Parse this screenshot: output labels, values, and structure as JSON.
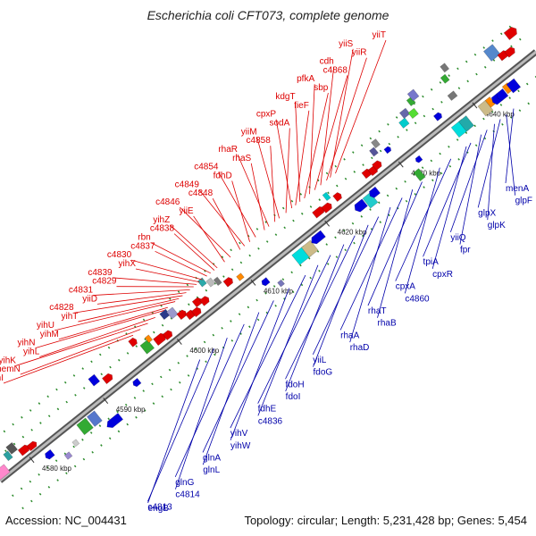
{
  "title": "Escherichia coli CFT073, complete genome",
  "footer": {
    "accession": "Accession: NC_004431",
    "summary": "Topology: circular; Length: 5,231,428 bp; Genes: 5,454"
  },
  "colors": {
    "top_label": "#dd0000",
    "bottom_label": "#0000aa",
    "axis": "#888888",
    "dots": "#2a8a2a"
  },
  "ruler": [
    {
      "pos": 4580,
      "label": "4580 kbp"
    },
    {
      "pos": 4590,
      "label": "4590 kbp"
    },
    {
      "pos": 4600,
      "label": "4600 kbp"
    },
    {
      "pos": 4610,
      "label": "4610 kbp"
    },
    {
      "pos": 4620,
      "label": "4620 kbp"
    },
    {
      "pos": 4630,
      "label": "4630 kbp"
    },
    {
      "pos": 4640,
      "label": "4640 kbp"
    }
  ],
  "top_labels": [
    {
      "text": "yiiT",
      "pos": 4624.0
    },
    {
      "text": "yiiS",
      "pos": 4623.3
    },
    {
      "text": "yiiR",
      "pos": 4622.8
    },
    {
      "text": "cdh",
      "pos": 4622.0
    },
    {
      "text": "c4868",
      "pos": 4621.2
    },
    {
      "text": "pfkA",
      "pos": 4620.5
    },
    {
      "text": "sbp",
      "pos": 4619.8
    },
    {
      "text": "kdgT",
      "pos": 4619.2
    },
    {
      "text": "fieF",
      "pos": 4618.6
    },
    {
      "text": "cpxP",
      "pos": 4618.1
    },
    {
      "text": "sodA",
      "pos": 4617.3
    },
    {
      "text": "yiiM",
      "pos": 4616.4
    },
    {
      "text": "c4858",
      "pos": 4615.8
    },
    {
      "text": "rhaR",
      "pos": 4615.0
    },
    {
      "text": "rhaS",
      "pos": 4614.4
    },
    {
      "text": "c4854",
      "pos": 4613.2
    },
    {
      "text": "fdhD",
      "pos": 4612.4
    },
    {
      "text": "c4849",
      "pos": 4611.7
    },
    {
      "text": "c4848",
      "pos": 4611.1
    },
    {
      "text": "c4846",
      "pos": 4609.8
    },
    {
      "text": "yiiE",
      "pos": 4609.0
    },
    {
      "text": "yihZ",
      "pos": 4608.0
    },
    {
      "text": "c4838",
      "pos": 4607.6
    },
    {
      "text": "rbn",
      "pos": 4607.1
    },
    {
      "text": "c4837",
      "pos": 4606.6
    },
    {
      "text": "c4830",
      "pos": 4606.0
    },
    {
      "text": "yihX",
      "pos": 4605.6
    },
    {
      "text": "c4839",
      "pos": 4605.2
    },
    {
      "text": "c4829",
      "pos": 4604.8
    },
    {
      "text": "c4831",
      "pos": 4604.3
    },
    {
      "text": "yiiD",
      "pos": 4603.8
    },
    {
      "text": "c4828",
      "pos": 4603.3
    },
    {
      "text": "yihT",
      "pos": 4602.8
    },
    {
      "text": "yihU",
      "pos": 4602.3
    },
    {
      "text": "yihM",
      "pos": 4601.3
    },
    {
      "text": "yihN",
      "pos": 4600.8
    },
    {
      "text": "yihL",
      "pos": 4599.6
    },
    {
      "text": "yihK",
      "pos": 4598.6
    },
    {
      "text": "hemN",
      "pos": 4597.6
    },
    {
      "text": "yihI",
      "pos": 4596.6
    }
  ],
  "bottom_labels": [
    {
      "text": "menA",
      "pos": 4643.0
    },
    {
      "text": "glpF",
      "pos": 4642.0
    },
    {
      "text": "glpX",
      "pos": 4641.2
    },
    {
      "text": "glpK",
      "pos": 4640.4
    },
    {
      "text": "yiiQ",
      "pos": 4639.4
    },
    {
      "text": "fpr",
      "pos": 4638.6
    },
    {
      "text": "tpiA",
      "pos": 4637.2
    },
    {
      "text": "cpxR",
      "pos": 4636.6
    },
    {
      "text": "cpxA",
      "pos": 4634.5
    },
    {
      "text": "c4860",
      "pos": 4633.0
    },
    {
      "text": "rhaT",
      "pos": 4630.6
    },
    {
      "text": "rhaB",
      "pos": 4629.3
    },
    {
      "text": "rhaA",
      "pos": 4627.9
    },
    {
      "text": "rhaD",
      "pos": 4626.3
    },
    {
      "text": "yiiL",
      "pos": 4624.7
    },
    {
      "text": "fdoG",
      "pos": 4623.3
    },
    {
      "text": "fdoH",
      "pos": 4621.5
    },
    {
      "text": "fdoI",
      "pos": 4620.0
    },
    {
      "text": "fdhE",
      "pos": 4618.2
    },
    {
      "text": "c4836",
      "pos": 4616.5
    },
    {
      "text": "yihV",
      "pos": 4614.8
    },
    {
      "text": "yihW",
      "pos": 4612.6
    },
    {
      "text": "glnA",
      "pos": 4610.5
    },
    {
      "text": "glnL",
      "pos": 4608.5
    },
    {
      "text": "glnG",
      "pos": 4606.5
    },
    {
      "text": "c4814",
      "pos": 4604.2
    },
    {
      "text": "c4813",
      "pos": 4602.4
    },
    {
      "text": "engB",
      "pos": 4600.5
    }
  ],
  "features": [
    {
      "pos": 4576.0,
      "len": 1.4,
      "off": 6,
      "w": 11,
      "shape": "box",
      "color": "#ff88cc"
    },
    {
      "pos": 4578.0,
      "len": 0.6,
      "off": 16,
      "w": 9,
      "shape": "box",
      "color": "#2aa0a0"
    },
    {
      "pos": 4578.7,
      "len": 0.8,
      "off": 20,
      "w": 10,
      "shape": "box",
      "color": "#555555"
    },
    {
      "pos": 4579.5,
      "len": 0.9,
      "off": 10,
      "w": 8,
      "shape": "arrow",
      "color": "#e00000"
    },
    {
      "pos": 4580.5,
      "len": 0.8,
      "off": 8,
      "w": 7,
      "shape": "arrow",
      "color": "#e00000"
    },
    {
      "pos": 4581.5,
      "len": 0.7,
      "off": -12,
      "w": 8,
      "shape": "arrow",
      "color": "#0000dd"
    },
    {
      "pos": 4583.0,
      "len": 0.6,
      "off": -26,
      "w": 6,
      "shape": "box",
      "color": "#9a8ad0"
    },
    {
      "pos": 4584.5,
      "len": 0.5,
      "off": -20,
      "w": 6,
      "shape": "box",
      "color": "#cccccc"
    },
    {
      "pos": 4586.0,
      "len": 1.2,
      "off": -12,
      "w": 14,
      "shape": "box",
      "color": "#33aa33"
    },
    {
      "pos": 4587.4,
      "len": 1.0,
      "off": -12,
      "w": 14,
      "shape": "box",
      "color": "#5577cc"
    },
    {
      "pos": 4588.8,
      "len": 1.4,
      "off": -28,
      "w": 9,
      "shape": "arrow",
      "color": "#0000dd"
    },
    {
      "pos": 4590.0,
      "len": 0.8,
      "off": 22,
      "w": 10,
      "shape": "box",
      "color": "#0000dd"
    },
    {
      "pos": 4591.2,
      "len": 0.8,
      "off": 14,
      "w": 8,
      "shape": "arrow",
      "color": "#e00000"
    },
    {
      "pos": 4593.5,
      "len": 0.6,
      "off": -10,
      "w": 7,
      "shape": "arrow",
      "color": "#0000dd"
    },
    {
      "pos": 4595.8,
      "len": 0.6,
      "off": 28,
      "w": 8,
      "shape": "arrow",
      "color": "#e00000"
    },
    {
      "pos": 4596.5,
      "len": 1.0,
      "off": 14,
      "w": 12,
      "shape": "box",
      "color": "#33aa33"
    },
    {
      "pos": 4597.4,
      "len": 0.5,
      "off": 20,
      "w": 7,
      "shape": "box",
      "color": "#ff8800"
    },
    {
      "pos": 4598.0,
      "len": 1.0,
      "off": 12,
      "w": 9,
      "shape": "arrow",
      "color": "#e00000"
    },
    {
      "pos": 4599.1,
      "len": 0.7,
      "off": 10,
      "w": 8,
      "shape": "arrow",
      "color": "#e00000"
    },
    {
      "pos": 4600.2,
      "len": 0.8,
      "off": 30,
      "w": 8,
      "shape": "box",
      "color": "#2a3a8a"
    },
    {
      "pos": 4600.9,
      "len": 0.8,
      "off": 26,
      "w": 10,
      "shape": "box",
      "color": "#9999cc"
    },
    {
      "pos": 4601.6,
      "len": 0.7,
      "off": 18,
      "w": 8,
      "shape": "arrow",
      "color": "#e00000"
    },
    {
      "pos": 4602.3,
      "len": 0.7,
      "off": 12,
      "w": 8,
      "shape": "arrow",
      "color": "#e00000"
    },
    {
      "pos": 4603.0,
      "len": 0.7,
      "off": 10,
      "w": 8,
      "shape": "arrow",
      "color": "#e00000"
    },
    {
      "pos": 4603.7,
      "len": 0.7,
      "off": 18,
      "w": 8,
      "shape": "arrow",
      "color": "#e00000"
    },
    {
      "pos": 4604.4,
      "len": 0.7,
      "off": 14,
      "w": 8,
      "shape": "arrow",
      "color": "#e00000"
    },
    {
      "pos": 4605.5,
      "len": 0.6,
      "off": 32,
      "w": 8,
      "shape": "box",
      "color": "#2aaaaa"
    },
    {
      "pos": 4606.2,
      "len": 0.6,
      "off": 26,
      "w": 8,
      "shape": "box",
      "color": "#bbbbbb"
    },
    {
      "pos": 4606.9,
      "len": 0.5,
      "off": 22,
      "w": 8,
      "shape": "box",
      "color": "#777777"
    },
    {
      "pos": 4607.6,
      "len": 0.7,
      "off": 14,
      "w": 8,
      "shape": "arrow",
      "color": "#e00000"
    },
    {
      "pos": 4609.0,
      "len": 0.6,
      "off": 10,
      "w": 6,
      "shape": "box",
      "color": "#ff8800"
    },
    {
      "pos": 4610.8,
      "len": 0.6,
      "off": -12,
      "w": 7,
      "shape": "arrow",
      "color": "#0000dd"
    },
    {
      "pos": 4612.0,
      "len": 0.5,
      "off": -24,
      "w": 6,
      "shape": "box",
      "color": "#7777bb"
    },
    {
      "pos": 4615.0,
      "len": 1.6,
      "off": -14,
      "w": 14,
      "shape": "box",
      "color": "#00dddd"
    },
    {
      "pos": 4616.3,
      "len": 1.2,
      "off": -14,
      "w": 14,
      "shape": "box",
      "color": "#ccbb88"
    },
    {
      "pos": 4617.8,
      "len": 1.2,
      "off": -10,
      "w": 9,
      "shape": "arrow",
      "color": "#0000dd"
    },
    {
      "pos": 4619.5,
      "len": 1.0,
      "off": 12,
      "w": 8,
      "shape": "arrow",
      "color": "#e00000"
    },
    {
      "pos": 4620.6,
      "len": 0.8,
      "off": 10,
      "w": 8,
      "shape": "arrow",
      "color": "#e00000"
    },
    {
      "pos": 4621.5,
      "len": 0.5,
      "off": 20,
      "w": 8,
      "shape": "box",
      "color": "#00cccc"
    },
    {
      "pos": 4622.3,
      "len": 0.6,
      "off": 12,
      "w": 8,
      "shape": "arrow",
      "color": "#e00000"
    },
    {
      "pos": 4623.5,
      "len": 1.0,
      "off": -12,
      "w": 10,
      "shape": "arrow",
      "color": "#0000dd"
    },
    {
      "pos": 4624.6,
      "len": 1.0,
      "off": -14,
      "w": 14,
      "shape": "box",
      "color": "#22cccc"
    },
    {
      "pos": 4625.6,
      "len": 0.8,
      "off": -10,
      "w": 9,
      "shape": "arrow",
      "color": "#0000dd"
    },
    {
      "pos": 4626.2,
      "len": 0.7,
      "off": 12,
      "w": 8,
      "shape": "arrow",
      "color": "#e00000"
    },
    {
      "pos": 4626.9,
      "len": 0.7,
      "off": 10,
      "w": 8,
      "shape": "arrow",
      "color": "#e00000"
    },
    {
      "pos": 4627.6,
      "len": 0.7,
      "off": 12,
      "w": 8,
      "shape": "arrow",
      "color": "#e00000"
    },
    {
      "pos": 4628.3,
      "len": 0.6,
      "off": 26,
      "w": 8,
      "shape": "box",
      "color": "#555599"
    },
    {
      "pos": 4629.0,
      "len": 0.6,
      "off": 32,
      "w": 8,
      "shape": "box",
      "color": "#888888"
    },
    {
      "pos": 4629.6,
      "len": 0.5,
      "off": 18,
      "w": 6,
      "shape": "arrow",
      "color": "#0000dd"
    },
    {
      "pos": 4630.5,
      "len": 0.7,
      "off": -26,
      "w": 12,
      "shape": "box",
      "color": "#33aa33"
    },
    {
      "pos": 4631.6,
      "len": 0.5,
      "off": -12,
      "w": 6,
      "shape": "arrow",
      "color": "#0000dd"
    },
    {
      "pos": 4632.6,
      "len": 0.8,
      "off": 30,
      "w": 8,
      "shape": "box",
      "color": "#00cccc"
    },
    {
      "pos": 4633.3,
      "len": 0.8,
      "off": 38,
      "w": 8,
      "shape": "box",
      "color": "#6666aa"
    },
    {
      "pos": 4634.0,
      "len": 0.8,
      "off": 32,
      "w": 8,
      "shape": "box",
      "color": "#55dd33"
    },
    {
      "pos": 4634.7,
      "len": 0.6,
      "off": 44,
      "w": 8,
      "shape": "box",
      "color": "#33aa33"
    },
    {
      "pos": 4635.2,
      "len": 0.8,
      "off": 48,
      "w": 10,
      "shape": "box",
      "color": "#7777cc"
    },
    {
      "pos": 4635.9,
      "len": 0.6,
      "off": 12,
      "w": 7,
      "shape": "arrow",
      "color": "#0000dd"
    },
    {
      "pos": 4636.6,
      "len": 1.4,
      "off": -14,
      "w": 14,
      "shape": "box",
      "color": "#00dddd"
    },
    {
      "pos": 4637.6,
      "len": 1.0,
      "off": -14,
      "w": 14,
      "shape": "box",
      "color": "#22aaaa"
    },
    {
      "pos": 4638.4,
      "len": 0.8,
      "off": 20,
      "w": 7,
      "shape": "box",
      "color": "#777777"
    },
    {
      "pos": 4639.0,
      "len": 0.6,
      "off": 40,
      "w": 8,
      "shape": "box",
      "color": "#33aa33"
    },
    {
      "pos": 4639.7,
      "len": 0.6,
      "off": 50,
      "w": 8,
      "shape": "box",
      "color": "#777777"
    },
    {
      "pos": 4640.2,
      "len": 1.0,
      "off": -14,
      "w": 14,
      "shape": "box",
      "color": "#ccbb88"
    },
    {
      "pos": 4641.2,
      "len": 0.6,
      "off": -12,
      "w": 10,
      "shape": "box",
      "color": "#ff8800"
    },
    {
      "pos": 4641.9,
      "len": 0.7,
      "off": -14,
      "w": 10,
      "shape": "arrow",
      "color": "#0000dd"
    },
    {
      "pos": 4642.6,
      "len": 0.8,
      "off": -14,
      "w": 10,
      "shape": "arrow",
      "color": "#0000dd"
    },
    {
      "pos": 4643.5,
      "len": 0.7,
      "off": -12,
      "w": 10,
      "shape": "box",
      "color": "#ff8800"
    },
    {
      "pos": 4644.0,
      "len": 1.0,
      "off": -14,
      "w": 12,
      "shape": "box",
      "color": "#0000dd"
    },
    {
      "pos": 4644.3,
      "len": 1.2,
      "off": 30,
      "w": 14,
      "shape": "box",
      "color": "#5588cc"
    },
    {
      "pos": 4645.2,
      "len": 0.8,
      "off": 20,
      "w": 8,
      "shape": "arrow",
      "color": "#e00000"
    },
    {
      "pos": 4646.0,
      "len": 0.8,
      "off": 18,
      "w": 8,
      "shape": "arrow",
      "color": "#e00000"
    },
    {
      "pos": 4647.2,
      "len": 1.0,
      "off": 34,
      "w": 10,
      "shape": "arrow",
      "color": "#e00000"
    },
    {
      "pos": 4648.4,
      "len": 0.9,
      "off": -10,
      "w": 10,
      "shape": "box",
      "color": "#669922"
    }
  ]
}
